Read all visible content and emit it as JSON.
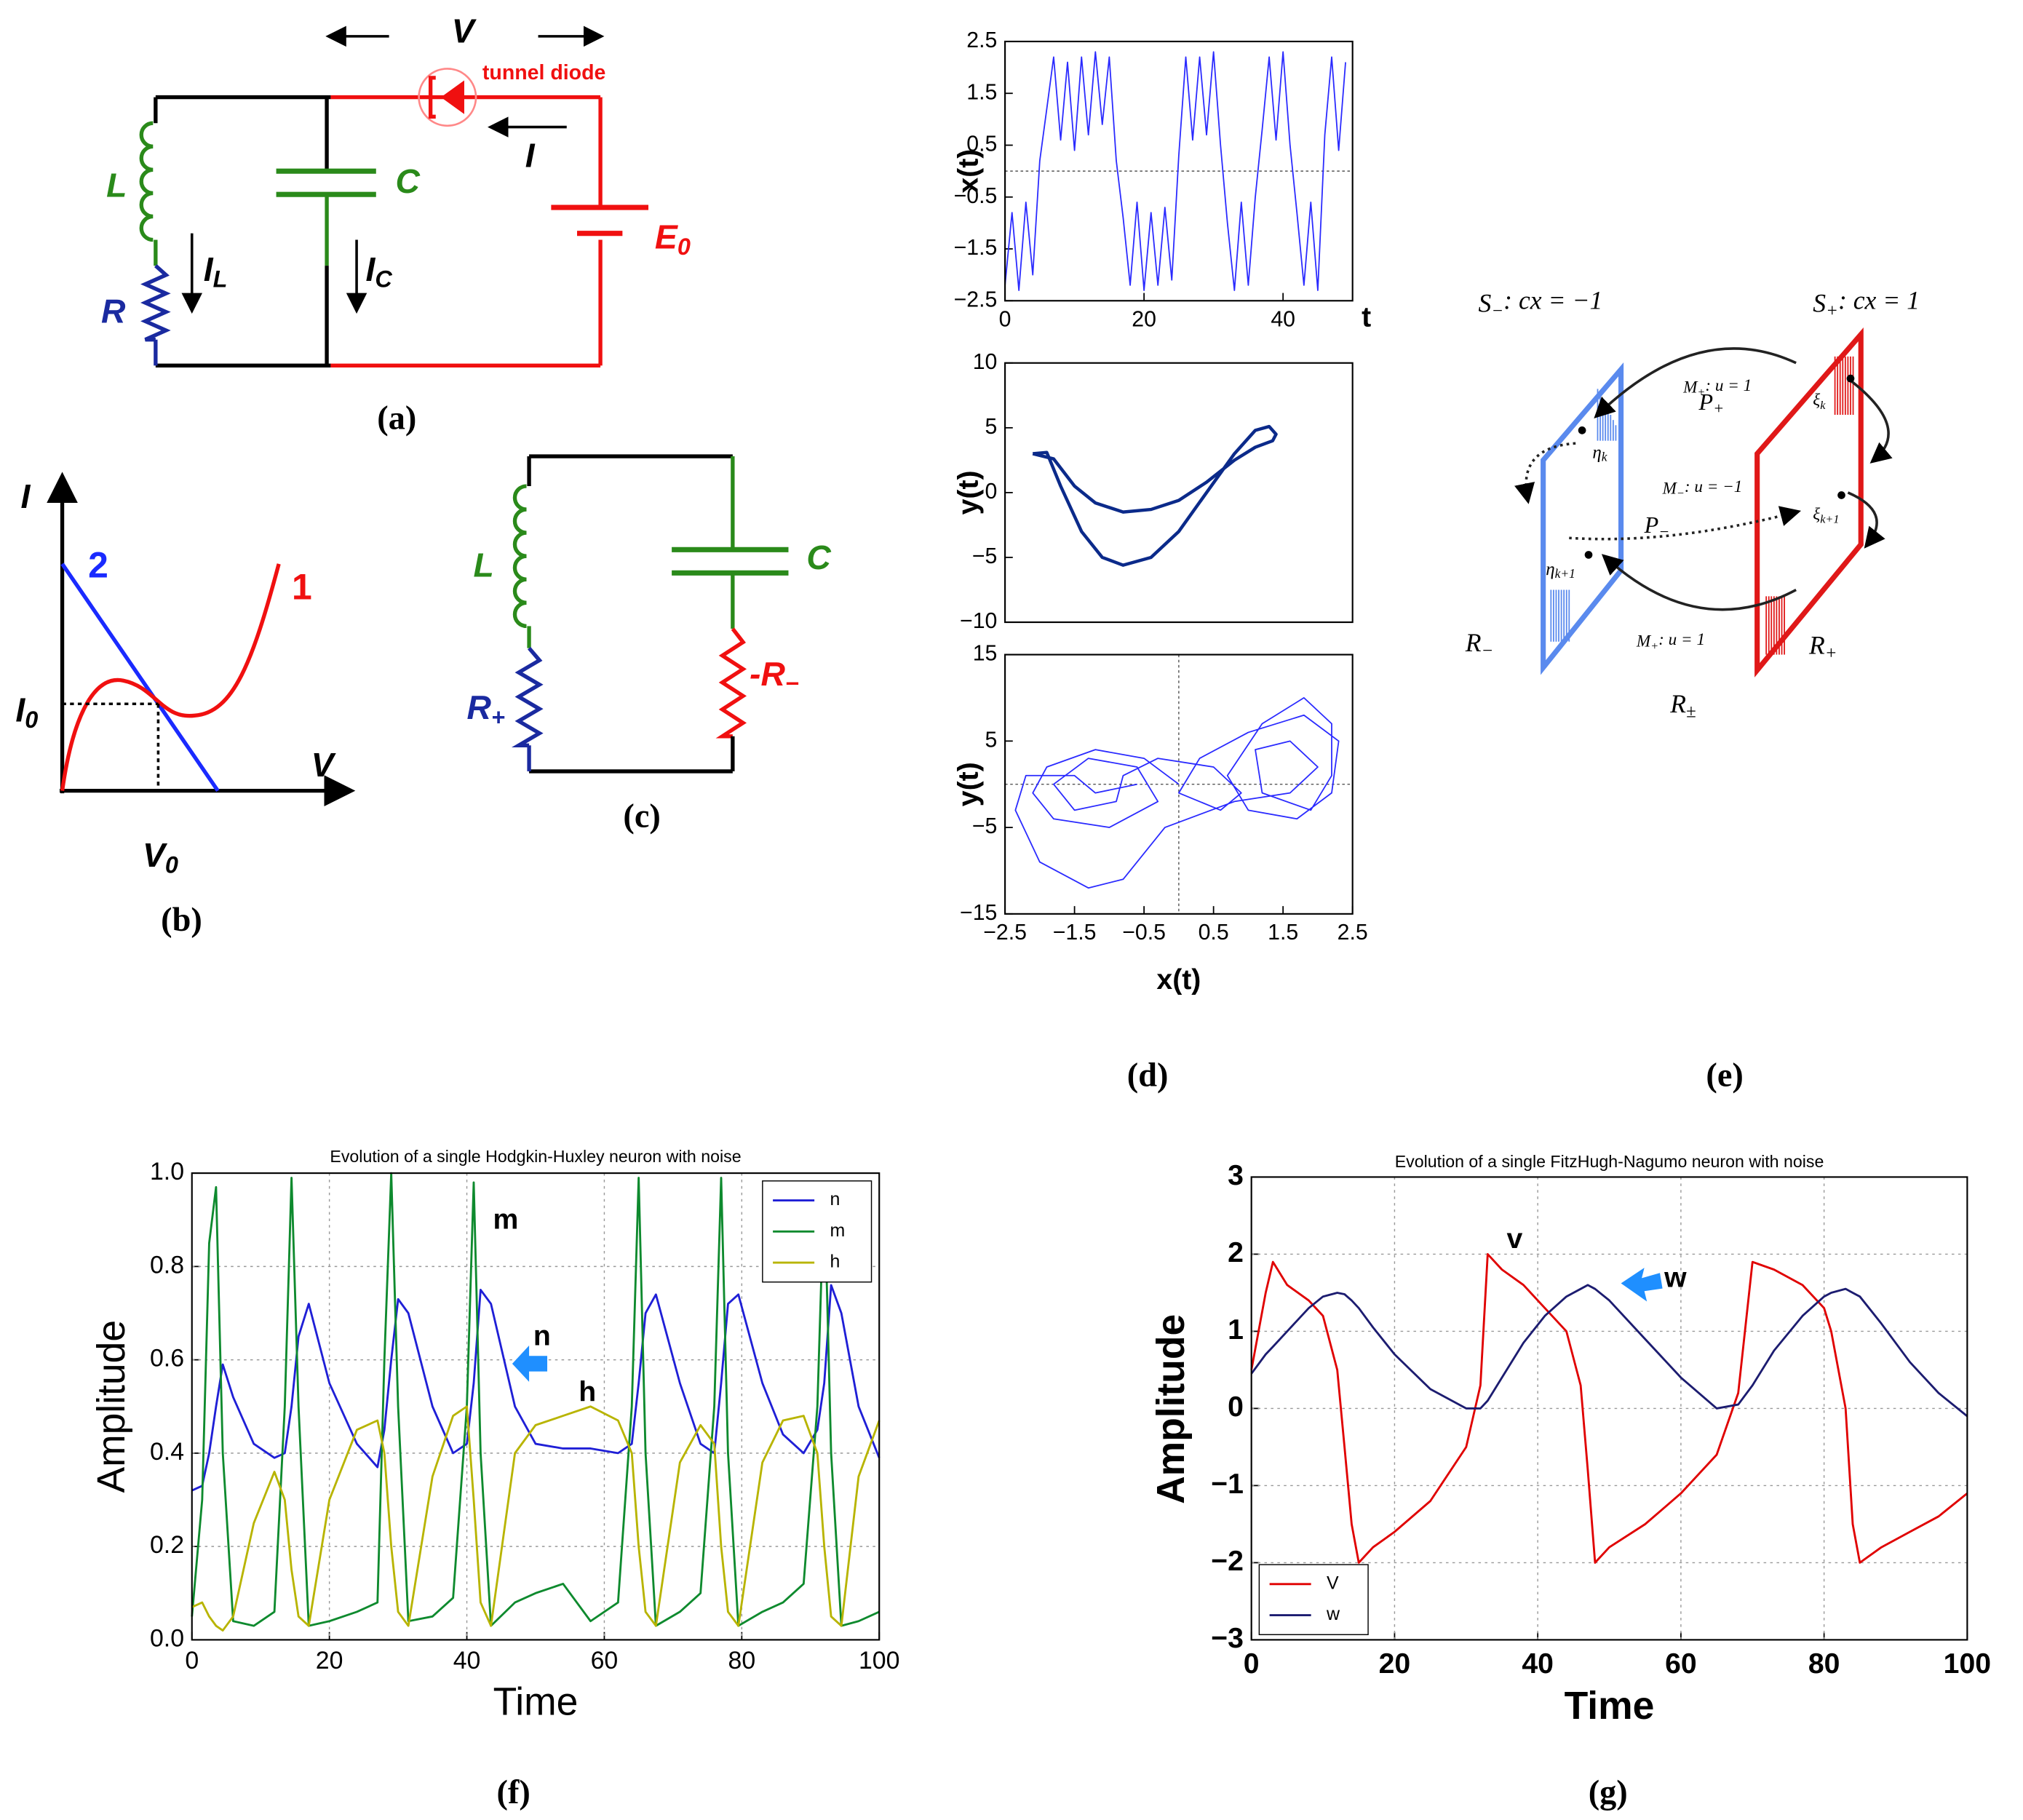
{
  "panels": {
    "a": {
      "label": "(a)",
      "V": "V",
      "diode": "tunnel diode",
      "I": "I",
      "L": "L",
      "C": "C",
      "R": "R",
      "E": {
        "text": "E",
        "sub": "0"
      },
      "IL": {
        "text": "I",
        "sub": "L"
      },
      "IC": {
        "text": "I",
        "sub": "C"
      }
    },
    "b": {
      "label": "(b)",
      "I": "I",
      "curve_2": "2",
      "curve_1": "1",
      "I0": {
        "text": "I",
        "sub": "0"
      },
      "V": "V",
      "V0": {
        "text": "V",
        "sub": "0"
      }
    },
    "c": {
      "label": "(c)",
      "L": "L",
      "C": "C",
      "R_plus": {
        "text": "R",
        "sub": "+"
      },
      "R_minus": {
        "text": "-R",
        "sub": "−"
      }
    },
    "d": {
      "label": "(d)"
    },
    "e": {
      "label": "(e)",
      "items": [
        {
          "text": "S",
          "sub": "−",
          "after": ": cx  = −1"
        },
        {
          "text": "S",
          "sub": "+",
          "after": ": cx  = 1"
        },
        {
          "text": "M",
          "sub": "+",
          "after": ": u = 1"
        },
        {
          "text": "P",
          "sub": "+"
        },
        {
          "text": "η",
          "sub": "k"
        },
        {
          "text": "ξ",
          "sub": "k"
        },
        {
          "text": "M",
          "sub": "−",
          "after": ": u = −1"
        },
        {
          "text": "ξ",
          "sub": "k+1"
        },
        {
          "text": "P",
          "sub": "−"
        },
        {
          "text": "η",
          "sub": "k+1"
        },
        {
          "text": "R",
          "sub": "−"
        },
        {
          "text": "M",
          "sub": "+",
          "after": ": u = 1"
        },
        {
          "text": "R",
          "sub": "+"
        },
        {
          "text": "R",
          "sub": "±"
        }
      ]
    },
    "f": {
      "label": "(f)"
    },
    "g": {
      "label": "(g)"
    }
  },
  "chart_data": [
    {
      "type": "line",
      "ylabel": "x(t)",
      "xlabel": "t",
      "color": "#2a2aff",
      "x": [
        0,
        1,
        2,
        3,
        4,
        5,
        6,
        7,
        8,
        9,
        10,
        11,
        12,
        13,
        14,
        15,
        16,
        17,
        18,
        19,
        20,
        21,
        22,
        23,
        24,
        25,
        26,
        27,
        28,
        29,
        30,
        31,
        32,
        33,
        34,
        35,
        36,
        37,
        38,
        39,
        40,
        41,
        42,
        43,
        44,
        45,
        46,
        47,
        48,
        49
      ],
      "values": [
        -2.2,
        -0.8,
        -2.3,
        -0.6,
        -2.0,
        0.2,
        1.2,
        2.2,
        0.6,
        2.1,
        0.4,
        2.2,
        0.7,
        2.3,
        0.9,
        2.2,
        0.2,
        -0.9,
        -2.2,
        -0.6,
        -2.3,
        -0.8,
        -2.2,
        -0.7,
        -2.1,
        0.3,
        2.2,
        0.6,
        2.2,
        0.7,
        2.3,
        0.5,
        -1.0,
        -2.3,
        -0.6,
        -2.2,
        -0.5,
        0.8,
        2.2,
        0.6,
        2.3,
        0.5,
        -0.8,
        -2.2,
        -0.6,
        -2.3,
        0.7,
        2.2,
        0.4,
        2.1
      ],
      "xlim": [
        0,
        50
      ],
      "xticks": [
        0,
        20,
        40
      ],
      "ylim": [
        -2.5,
        2.5
      ],
      "yticks": [
        {
          "value": -2.5,
          "label": "−2.5"
        },
        {
          "value": -1.5,
          "label": "−1.5"
        },
        {
          "value": -0.5,
          "label": "−0.5"
        },
        0.5,
        1.5,
        2.5
      ],
      "zero_lines": true
    },
    {
      "type": "line",
      "ylabel": "y(t)",
      "color": "#0b2a8a",
      "x": [
        -2.1,
        -1.9,
        -1.7,
        -1.4,
        -1.1,
        -0.8,
        -0.4,
        0,
        0.4,
        0.8,
        1.1,
        1.3,
        1.4,
        1.35,
        1.1,
        0.8,
        0.4,
        0,
        -0.4,
        -0.8,
        -1.2,
        -1.5,
        -1.8,
        -2.1
      ],
      "values": [
        3,
        3.1,
        0.5,
        -3,
        -5,
        -5.6,
        -5,
        -3,
        0,
        3,
        4.8,
        5.1,
        4.5,
        4.0,
        3.5,
        2.5,
        0.8,
        -0.6,
        -1.3,
        -1.5,
        -0.8,
        0.5,
        2.6,
        3
      ],
      "xlim": [
        -2.5,
        2.5
      ],
      "ylim": [
        -10,
        10
      ],
      "yticks": [
        {
          "value": -10,
          "label": "−10"
        },
        {
          "value": -5,
          "label": "−5"
        },
        0,
        5,
        10
      ]
    },
    {
      "type": "line",
      "ylabel": "y(t)",
      "xlabel": "x(t)",
      "color": "#2a2aff",
      "x": [
        0,
        -0.5,
        -1.2,
        -1.9,
        -2.1,
        -1.8,
        -1,
        -0.3,
        -0.6,
        -1.3,
        -1.8,
        -1.5,
        -0.9,
        -0.8,
        -0.3,
        0.5,
        0.9,
        0.6,
        0,
        0.3,
        1,
        1.8,
        2.3,
        2.2,
        1.7,
        1,
        0.7,
        1.2,
        1.8,
        2.2,
        2.2,
        1.9,
        1.2,
        1.1,
        1.6,
        2,
        1.6,
        0.8,
        -0.2,
        -0.8,
        -1.3,
        -2,
        -2.35,
        -2.2,
        -1.5,
        -1.2,
        -0.6
      ],
      "values": [
        0,
        3,
        4,
        2,
        -1,
        -4,
        -5,
        -2,
        2,
        3,
        0,
        -3,
        -2,
        1,
        3,
        2,
        -1,
        -3,
        -1,
        3,
        6,
        8,
        5,
        -1,
        -4,
        -3,
        1,
        7,
        10,
        7,
        1,
        -3,
        -1,
        4,
        5,
        2,
        -1,
        -2,
        -5,
        -11,
        -12,
        -9,
        -3,
        1,
        1,
        -1,
        0
      ],
      "xlim": [
        -2.5,
        2.5
      ],
      "xticks": [
        {
          "value": -2.5,
          "label": "−2.5"
        },
        {
          "value": -1.5,
          "label": "−1.5"
        },
        {
          "value": -0.5,
          "label": "−0.5"
        },
        0.5,
        1.5,
        2.5
      ],
      "ylim": [
        -15,
        15
      ],
      "yticks": [
        {
          "value": -15,
          "label": "−15"
        },
        {
          "value": -5,
          "label": "−5"
        },
        5,
        15
      ],
      "zero_lines": true
    },
    {
      "type": "line",
      "title": "Evolution of a single Hodgkin-Huxley neuron with noise",
      "xlabel": "Time",
      "ylabel": "Amplitude",
      "x": [
        0,
        1.5,
        2.5,
        3.5,
        4.5,
        6,
        9,
        12,
        13.5,
        14.5,
        15.5,
        17,
        20,
        24,
        27,
        28,
        29,
        30,
        31.5,
        35,
        38,
        40,
        41,
        42,
        43.5,
        47,
        50,
        54,
        58,
        62,
        64,
        65,
        66,
        67.5,
        71,
        74,
        76,
        77,
        78,
        79.5,
        83,
        86,
        89,
        91,
        92,
        93,
        94.5,
        97,
        100
      ],
      "series": [
        {
          "name": "n",
          "color": "#1f1fd6",
          "values": [
            0.32,
            0.33,
            0.4,
            0.5,
            0.59,
            0.52,
            0.42,
            0.39,
            0.4,
            0.5,
            0.65,
            0.72,
            0.55,
            0.42,
            0.37,
            0.45,
            0.6,
            0.73,
            0.7,
            0.5,
            0.4,
            0.42,
            0.55,
            0.75,
            0.72,
            0.5,
            0.42,
            0.41,
            0.41,
            0.4,
            0.42,
            0.55,
            0.7,
            0.74,
            0.55,
            0.42,
            0.4,
            0.55,
            0.72,
            0.74,
            0.55,
            0.44,
            0.4,
            0.45,
            0.55,
            0.76,
            0.7,
            0.5,
            0.39
          ]
        },
        {
          "name": "m",
          "color": "#0e8a2e",
          "values": [
            0.05,
            0.3,
            0.85,
            0.97,
            0.4,
            0.04,
            0.03,
            0.06,
            0.5,
            0.99,
            0.5,
            0.03,
            0.04,
            0.06,
            0.08,
            0.6,
            1.0,
            0.5,
            0.04,
            0.05,
            0.09,
            0.5,
            0.98,
            0.4,
            0.03,
            0.08,
            0.1,
            0.12,
            0.04,
            0.08,
            0.5,
            0.99,
            0.4,
            0.03,
            0.06,
            0.1,
            0.5,
            0.99,
            0.4,
            0.03,
            0.06,
            0.08,
            0.12,
            0.5,
            0.98,
            0.4,
            0.03,
            0.04,
            0.06
          ]
        },
        {
          "name": "h",
          "color": "#b8b400",
          "values": [
            0.07,
            0.08,
            0.05,
            0.03,
            0.02,
            0.05,
            0.25,
            0.36,
            0.3,
            0.15,
            0.05,
            0.03,
            0.3,
            0.45,
            0.47,
            0.4,
            0.2,
            0.06,
            0.03,
            0.35,
            0.48,
            0.5,
            0.3,
            0.08,
            0.03,
            0.4,
            0.46,
            0.48,
            0.5,
            0.47,
            0.4,
            0.2,
            0.06,
            0.03,
            0.38,
            0.46,
            0.42,
            0.2,
            0.06,
            0.03,
            0.38,
            0.47,
            0.48,
            0.4,
            0.2,
            0.05,
            0.03,
            0.35,
            0.47
          ]
        }
      ],
      "xlim": [
        0,
        100
      ],
      "xticks": [
        0,
        20,
        40,
        60,
        80,
        100
      ],
      "ylim": [
        0,
        1
      ],
      "yticks": [
        {
          "value": 0,
          "label": "0.0"
        },
        0.2,
        0.4,
        0.6,
        0.8,
        {
          "value": 1,
          "label": "1.0"
        }
      ],
      "grid": true,
      "legend": "upper right",
      "annotations": [
        "m",
        "n",
        "h"
      ]
    },
    {
      "type": "line",
      "title": "Evolution of a single FitzHugh-Nagumo neuron with noise",
      "xlabel": "Time",
      "ylabel": "Amplitude",
      "x": [
        0,
        2,
        3,
        5,
        8,
        10,
        12,
        13,
        14,
        15,
        17,
        20,
        25,
        30,
        32,
        33,
        35,
        38,
        41,
        44,
        46,
        47,
        48,
        50,
        55,
        60,
        65,
        68,
        70,
        73,
        77,
        80,
        81,
        83,
        84,
        85,
        88,
        92,
        96,
        100
      ],
      "series": [
        {
          "name": "V",
          "color": "#e00000",
          "values": [
            0.5,
            1.5,
            1.9,
            1.6,
            1.4,
            1.2,
            0.5,
            -0.5,
            -1.5,
            -2.0,
            -1.8,
            -1.6,
            -1.2,
            -0.5,
            0.3,
            2.0,
            1.8,
            1.6,
            1.3,
            1.0,
            0.3,
            -0.8,
            -2.0,
            -1.8,
            -1.5,
            -1.1,
            -0.6,
            0.2,
            1.9,
            1.8,
            1.6,
            1.3,
            1.0,
            0,
            -1.5,
            -2.0,
            -1.8,
            -1.6,
            -1.4,
            -1.1
          ]
        },
        {
          "name": "w",
          "color": "#1c1c70",
          "values": [
            0.45,
            0.7,
            0.8,
            1.0,
            1.3,
            1.45,
            1.5,
            1.48,
            1.4,
            1.3,
            1.05,
            0.7,
            0.25,
            0.0,
            0.0,
            0.1,
            0.4,
            0.85,
            1.2,
            1.45,
            1.55,
            1.6,
            1.55,
            1.4,
            0.9,
            0.4,
            0.0,
            0.05,
            0.3,
            0.75,
            1.2,
            1.45,
            1.5,
            1.55,
            1.5,
            1.45,
            1.1,
            0.6,
            0.2,
            -0.1
          ]
        }
      ],
      "xlim": [
        0,
        100
      ],
      "xticks": [
        0,
        20,
        40,
        60,
        80,
        100
      ],
      "ylim": [
        -3,
        3
      ],
      "yticks": [
        {
          "value": -3,
          "label": "−3"
        },
        {
          "value": -2,
          "label": "−2"
        },
        {
          "value": -1,
          "label": "−1"
        },
        0,
        1,
        2,
        3
      ],
      "grid": true,
      "legend": "lower left",
      "annotations": [
        "v",
        "w"
      ]
    }
  ]
}
